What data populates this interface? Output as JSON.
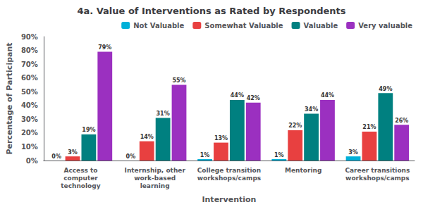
{
  "chart_data": {
    "type": "bar",
    "title": "4a. Value of Interventions as Rated by Respondents",
    "xlabel": "Intervention",
    "ylabel": "Percentage of Participant",
    "categories": [
      "Access to\ncomputer\ntechnology",
      "Internship, other\nwork-based\nlearning",
      "College transition\nworkshops/camps",
      "Mentoring",
      "Career transitions\nworkshops/camps"
    ],
    "series": [
      {
        "name": "Not Valuable",
        "color": "#00b0d8",
        "values": [
          0,
          0,
          1,
          1,
          3
        ],
        "value_labels": [
          "0%",
          "0%",
          "1%",
          "1%",
          "3%"
        ]
      },
      {
        "name": "Somewhat Valuable",
        "color": "#e84040",
        "values": [
          3,
          14,
          13,
          22,
          21
        ],
        "value_labels": [
          "3%",
          "14%",
          "13%",
          "22%",
          "21%"
        ]
      },
      {
        "name": "Valuable",
        "color": "#008080",
        "values": [
          19,
          31,
          44,
          34,
          49
        ],
        "value_labels": [
          "19%",
          "31%",
          "44%",
          "34%",
          "49%"
        ]
      },
      {
        "name": "Very valuable",
        "color": "#9b30c0",
        "values": [
          79,
          55,
          42,
          44,
          26
        ],
        "value_labels": [
          "79%",
          "55%",
          "42%",
          "44%",
          "26%"
        ]
      }
    ],
    "ylim": [
      0,
      90
    ],
    "yticks": [
      {
        "value": 0,
        "label": "0%"
      },
      {
        "value": 10,
        "label": "10%"
      },
      {
        "value": 20,
        "label": "20%"
      },
      {
        "value": 30,
        "label": "30%"
      },
      {
        "value": 40,
        "label": "40%"
      },
      {
        "value": 50,
        "label": "50%"
      },
      {
        "value": 60,
        "label": "60%"
      },
      {
        "value": 70,
        "label": "70%"
      },
      {
        "value": 80,
        "label": "80%"
      },
      {
        "value": 90,
        "label": "90%"
      }
    ],
    "grid": false,
    "legend": "upper right",
    "data_labels": true
  }
}
